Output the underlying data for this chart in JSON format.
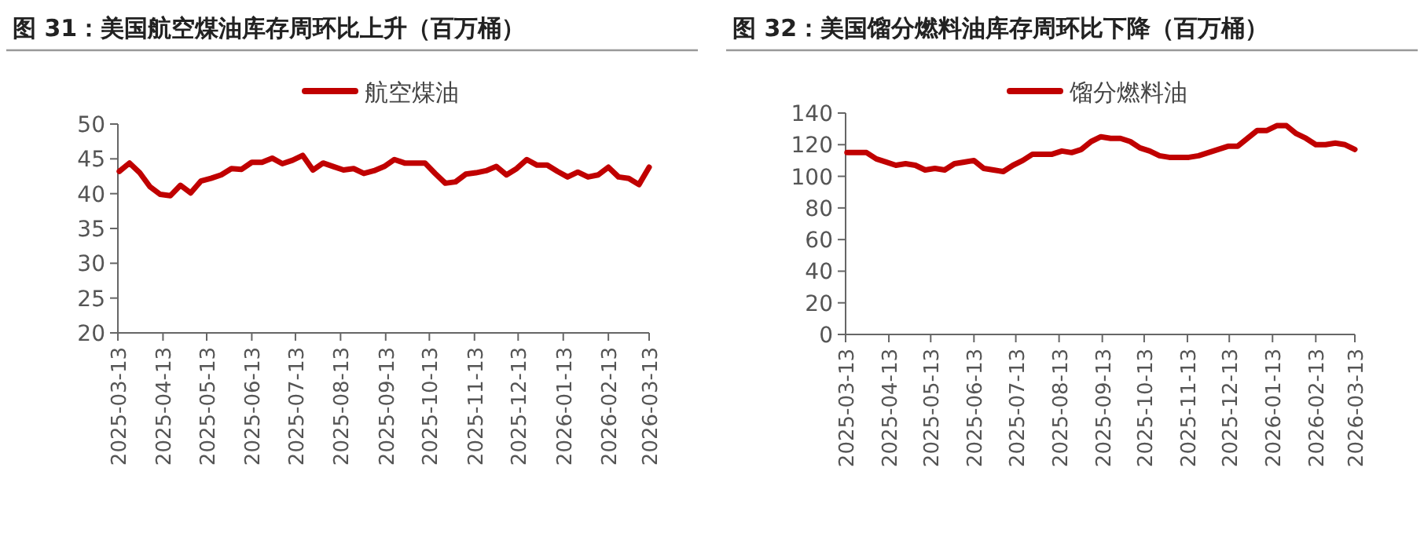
{
  "chart_data": [
    {
      "type": "line",
      "title": "图 31：美国航空煤油库存周环比上升（百万桶）",
      "legend": "top",
      "xlim": [
        "2025-03-13",
        "2026-03-13"
      ],
      "xticks": [
        "2025-03-13",
        "2025-04-13",
        "2025-05-13",
        "2025-06-13",
        "2025-07-13",
        "2025-08-13",
        "2025-09-13",
        "2025-10-13",
        "2025-11-13",
        "2025-12-13",
        "2026-01-13",
        "2026-02-13",
        "2026-03-13"
      ],
      "ylim": [
        20,
        50
      ],
      "yticks": [
        20,
        25,
        30,
        35,
        40,
        45,
        50
      ],
      "x": [
        "2025-03-14",
        "2025-03-21",
        "2025-03-28",
        "2025-04-04",
        "2025-04-11",
        "2025-04-18",
        "2025-04-25",
        "2025-05-02",
        "2025-05-09",
        "2025-05-16",
        "2025-05-23",
        "2025-05-30",
        "2025-06-06",
        "2025-06-13",
        "2025-06-20",
        "2025-06-27",
        "2025-07-04",
        "2025-07-11",
        "2025-07-18",
        "2025-07-25",
        "2025-08-01",
        "2025-08-08",
        "2025-08-15",
        "2025-08-22",
        "2025-08-29",
        "2025-09-05",
        "2025-09-12",
        "2025-09-19",
        "2025-09-26",
        "2025-10-03",
        "2025-10-10",
        "2025-10-17",
        "2025-10-24",
        "2025-10-31",
        "2025-11-07",
        "2025-11-14",
        "2025-11-21",
        "2025-11-28",
        "2025-12-05",
        "2025-12-12",
        "2025-12-19",
        "2025-12-26",
        "2026-01-02",
        "2026-01-09",
        "2026-01-16",
        "2026-01-23",
        "2026-01-30",
        "2026-02-06",
        "2026-02-13",
        "2026-02-20",
        "2026-02-27",
        "2026-03-06",
        "2026-03-13"
      ],
      "series": [
        {
          "name": "航空煤油",
          "color": "#c00000",
          "values": [
            43.2,
            44.4,
            43.0,
            41.0,
            39.9,
            39.7,
            41.2,
            40.1,
            41.8,
            42.2,
            42.7,
            43.6,
            43.5,
            44.5,
            44.5,
            45.1,
            44.3,
            44.8,
            45.5,
            43.4,
            44.4,
            43.9,
            43.4,
            43.6,
            42.9,
            43.3,
            43.9,
            44.9,
            44.4,
            44.4,
            44.4,
            42.9,
            41.5,
            41.7,
            42.8,
            43.0,
            43.3,
            43.9,
            42.7,
            43.6,
            44.9,
            44.1,
            44.1,
            43.2,
            42.4,
            43.1,
            42.4,
            42.7,
            43.8,
            42.4,
            42.2,
            41.3,
            43.8
          ]
        }
      ]
    },
    {
      "type": "line",
      "title": "图 32：美国馏分燃料油库存周环比下降（百万桶）",
      "legend": "top",
      "xlim": [
        "2025-03-13",
        "2026-03-13"
      ],
      "xticks": [
        "2025-03-13",
        "2025-04-13",
        "2025-05-13",
        "2025-06-13",
        "2025-07-13",
        "2025-08-13",
        "2025-09-13",
        "2025-10-13",
        "2025-11-13",
        "2025-12-13",
        "2026-01-13",
        "2026-02-13",
        "2026-03-13"
      ],
      "ylim": [
        0,
        140
      ],
      "yticks": [
        0,
        20,
        40,
        60,
        80,
        100,
        120,
        140
      ],
      "x": [
        "2025-03-14",
        "2025-03-21",
        "2025-03-28",
        "2025-04-04",
        "2025-04-11",
        "2025-04-18",
        "2025-04-25",
        "2025-05-02",
        "2025-05-09",
        "2025-05-16",
        "2025-05-23",
        "2025-05-30",
        "2025-06-06",
        "2025-06-13",
        "2025-06-20",
        "2025-06-27",
        "2025-07-04",
        "2025-07-11",
        "2025-07-18",
        "2025-07-25",
        "2025-08-01",
        "2025-08-08",
        "2025-08-15",
        "2025-08-22",
        "2025-08-29",
        "2025-09-05",
        "2025-09-12",
        "2025-09-19",
        "2025-09-26",
        "2025-10-03",
        "2025-10-10",
        "2025-10-17",
        "2025-10-24",
        "2025-10-31",
        "2025-11-07",
        "2025-11-14",
        "2025-11-21",
        "2025-11-28",
        "2025-12-05",
        "2025-12-12",
        "2025-12-19",
        "2025-12-26",
        "2026-01-02",
        "2026-01-09",
        "2026-01-16",
        "2026-01-23",
        "2026-01-30",
        "2026-02-06",
        "2026-02-13",
        "2026-02-20",
        "2026-02-27",
        "2026-03-06",
        "2026-03-13"
      ],
      "series": [
        {
          "name": "馏分燃料油",
          "color": "#c00000",
          "values": [
            115,
            115,
            115,
            111,
            109,
            107,
            108,
            107,
            104,
            105,
            104,
            108,
            109,
            110,
            105,
            104,
            103,
            107,
            110,
            114,
            114,
            114,
            116,
            115,
            117,
            122,
            125,
            124,
            124,
            122,
            118,
            116,
            113,
            112,
            112,
            112,
            113,
            115,
            117,
            119,
            119,
            124,
            129,
            129,
            132,
            132,
            127,
            124,
            120,
            120,
            121,
            120,
            117
          ]
        }
      ]
    }
  ]
}
